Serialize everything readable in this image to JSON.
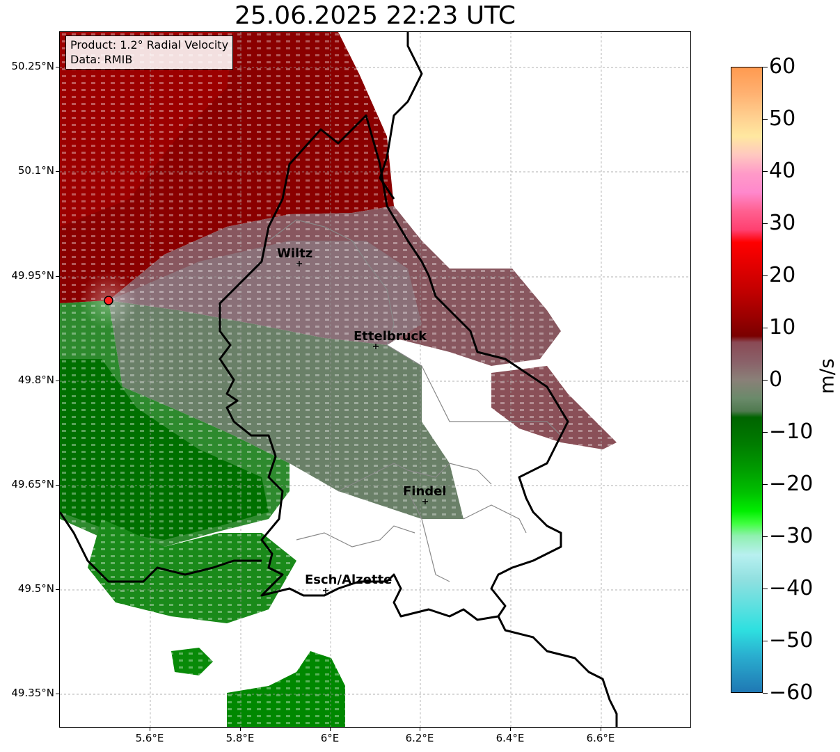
{
  "title": "25.06.2025 22:23 UTC",
  "info": {
    "product": "Product: 1.2° Radial Velocity",
    "source": "Data: RMIB"
  },
  "lat_ticks": [
    "50.25°N",
    "50.1°N",
    "49.95°N",
    "49.8°N",
    "49.65°N",
    "49.5°N",
    "49.35°N"
  ],
  "lon_ticks": [
    "5.6°E",
    "5.8°E",
    "6°E",
    "6.2°E",
    "6.4°E",
    "6.6°E"
  ],
  "cities": [
    {
      "name": "Wiltz"
    },
    {
      "name": "Ettelbruck"
    },
    {
      "name": "Findel"
    },
    {
      "name": "Esch/Alzette"
    }
  ],
  "colorbar": {
    "unit": "m/s",
    "ticks": [
      "60",
      "50",
      "40",
      "30",
      "20",
      "10",
      "0",
      "−10",
      "−20",
      "−30",
      "−40",
      "−50",
      "−60"
    ],
    "range": [
      -60,
      60
    ],
    "colors": {
      "neg_high": "#1f78b4",
      "neg_cyan": "#2ee0e0",
      "neg_light": "#b8f0f0",
      "neg_mint": "#90f0b0",
      "neg_bright_green": "#00ee00",
      "neg_green": "#009900",
      "neg_dark_green": "#006400",
      "near_zero_green": "#6a8a6a",
      "zero_gray": "#8a8078",
      "near_zero_mauve": "#8a5560",
      "pos_dark_red": "#7a0000",
      "pos_red": "#ff0000",
      "pos_pink": "#ff88cc",
      "pos_light": "#ffe0a0",
      "pos_orange": "#ff9a50"
    }
  },
  "radar_site_color": "#ff2020"
}
